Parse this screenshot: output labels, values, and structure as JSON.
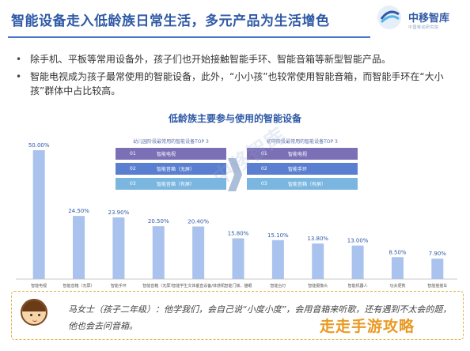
{
  "header": {
    "title": "智能设备走入低龄族日常生活，多元产品为生活增色",
    "logo_name": "中移智库",
    "logo_sub": "中国移动研究院"
  },
  "bullets": [
    "除手机、平板等常用设备外，孩子们也开始接触智能手环、智能音箱等新型智能产品。",
    "智能电视成为孩子最常使用的智能设备，此外，“小小孩”也较常使用智能音箱，而智能手环在“大小孩”群体中占比较高。"
  ],
  "watermark": "中移智库",
  "legend_left": {
    "title": "幼儿园阶段最常用的智能设备TOP 3",
    "items": [
      {
        "num": "01",
        "name": "智能电视",
        "color": "#7b6fb6"
      },
      {
        "num": "02",
        "name": "智能音箱（无屏）",
        "color": "#5a7fd1"
      },
      {
        "num": "03",
        "name": "智能音箱（有屏）",
        "color": "#7bb6e0"
      }
    ]
  },
  "legend_right": {
    "title": "初中阶段最常用的智能设备TOP 3",
    "items": [
      {
        "num": "01",
        "name": "智能电视",
        "color": "#7b6fb6"
      },
      {
        "num": "02",
        "name": "智能手环",
        "color": "#5a7fd1"
      },
      {
        "num": "03",
        "name": "智能音箱（有屏）",
        "color": "#7bb6e0"
      }
    ]
  },
  "quote": {
    "text": "马女士（孩子二年级）：他学我们，会自己说“小度小度”，会用音箱来听歌，还有遇到不太会的题，他也会去问音箱。"
  },
  "site_watermark": "走走手游攻略",
  "chart_data": {
    "type": "bar",
    "title": "低龄族主要参与使用的智能设备",
    "categories": [
      "智能电视",
      "智能音箱（无屏）",
      "智能手环",
      "智能音箱（无屏）",
      "智能学生文体垂直设备/体感机",
      "智能门锁、猫眼",
      "智能台灯",
      "智能摄像头",
      "智能机器人",
      "功夫便携",
      "智能摇摇车"
    ],
    "values": [
      50.0,
      24.5,
      23.9,
      20.5,
      20.4,
      15.8,
      15.1,
      13.8,
      13.0,
      8.5,
      7.9
    ],
    "value_labels": [
      "50.00%",
      "24.50%",
      "23.90%",
      "20.50%",
      "20.40%",
      "15.80%",
      "15.10%",
      "13.80%",
      "13.00%",
      "8.50%",
      "7.90%"
    ],
    "ylim": [
      0,
      50
    ],
    "bar_color": "#a9c2ee",
    "grid": false
  }
}
